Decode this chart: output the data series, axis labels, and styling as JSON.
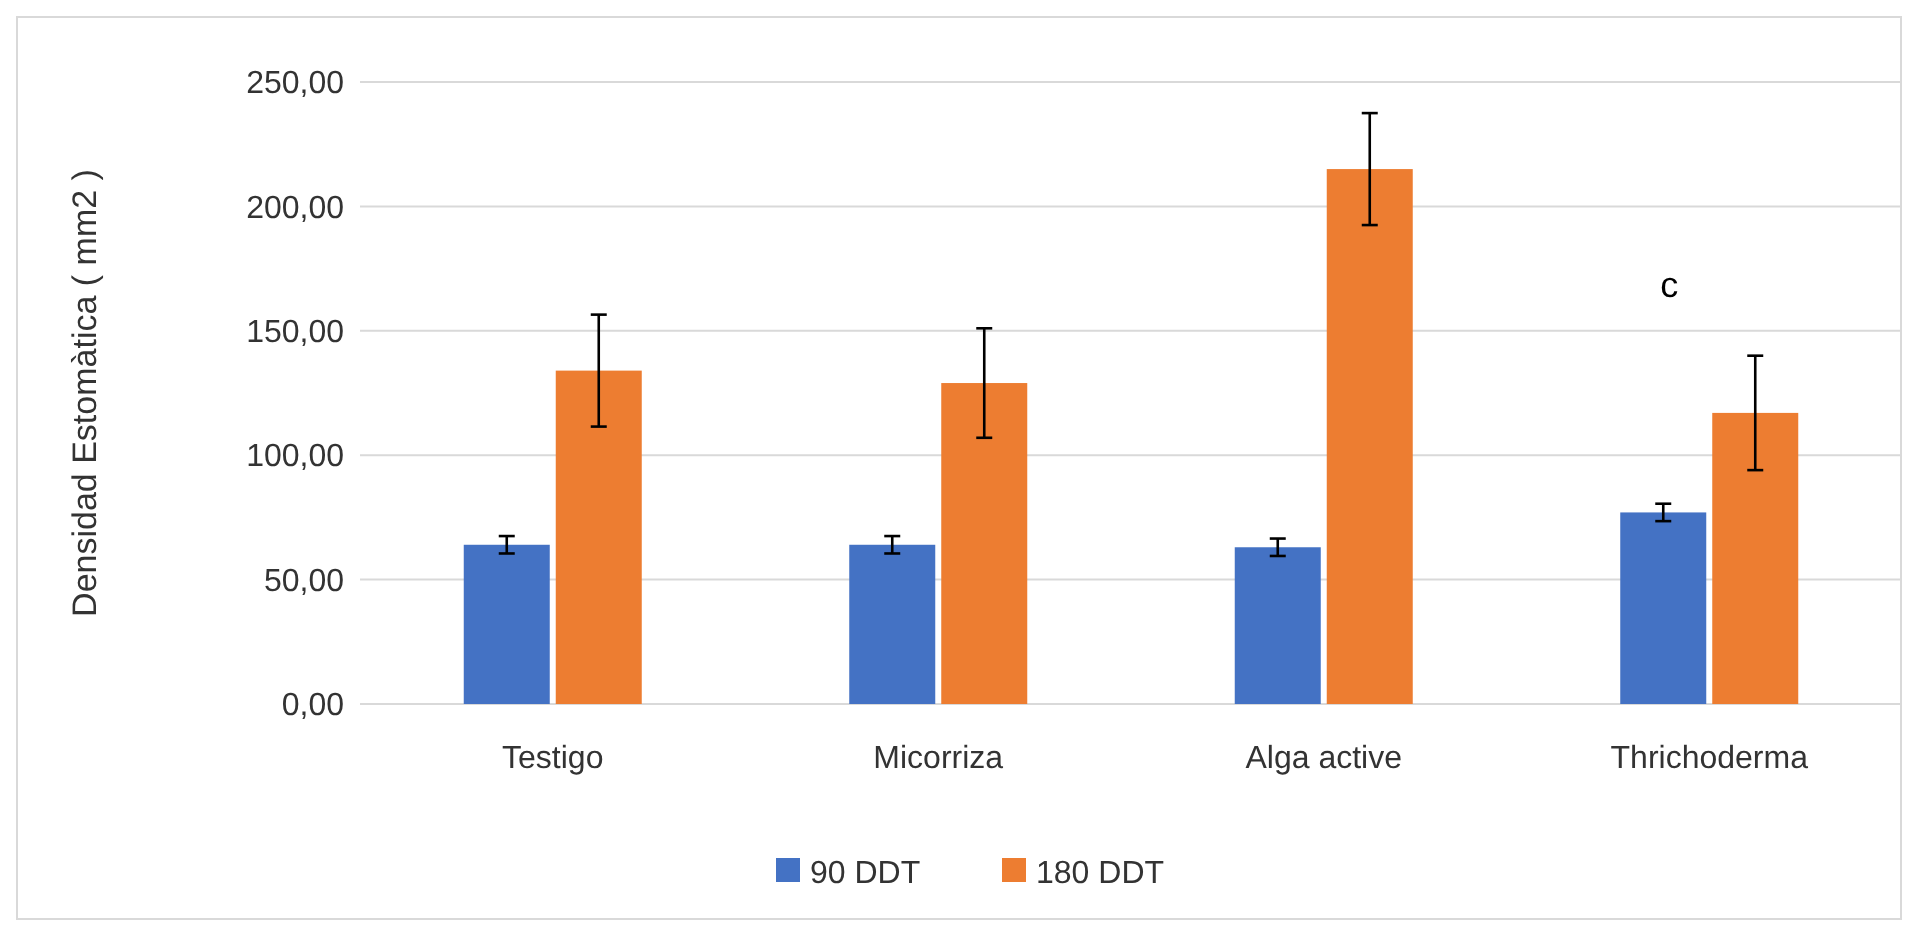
{
  "chart_data": {
    "type": "bar",
    "ylabel": "Densidad Estomàtica ( mm2 )",
    "categories": [
      "Testigo",
      "Micorriza",
      "Alga active",
      "Thrichoderma"
    ],
    "series": [
      {
        "name": "90 DDT",
        "color": "#4472c4",
        "values": [
          64,
          64,
          63,
          77
        ],
        "errors": [
          3.5,
          3.5,
          3.5,
          3.5
        ]
      },
      {
        "name": "180 DDT",
        "color": "#ed7d31",
        "values": [
          134,
          129,
          215,
          117
        ],
        "errors": [
          22.5,
          22,
          22.5,
          23
        ]
      }
    ],
    "ylim": [
      0,
      250
    ],
    "yticks": [
      {
        "value": 0,
        "label": "0,00"
      },
      {
        "value": 50,
        "label": "50,00"
      },
      {
        "value": 100,
        "label": "100,00"
      },
      {
        "value": 150,
        "label": "150,00"
      },
      {
        "value": 200,
        "label": "200,00"
      },
      {
        "value": 250,
        "label": "250,00"
      }
    ],
    "grid": "y",
    "legend": "bottom",
    "annotations": [
      "c"
    ]
  }
}
